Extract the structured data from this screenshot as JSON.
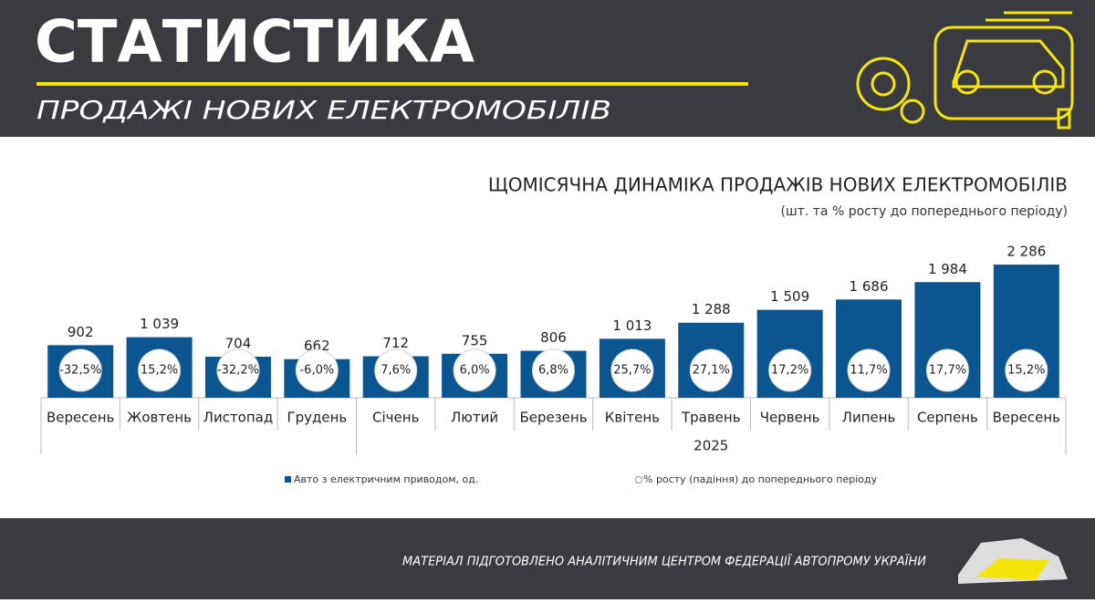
{
  "header": {
    "title": "СТАТИСТИКА",
    "subtitle": "ПРОДАЖІ НОВИХ ЕЛЕКТРОМОБІЛІВ"
  },
  "chart_data": {
    "type": "bar",
    "title": "ЩОМІСЯЧНА ДИНАМІКА ПРОДАЖІВ НОВИХ ЕЛЕКТРОМОБІЛІВ",
    "subtitle": "(шт. та % росту до попереднього періоду)",
    "categories": [
      "Вересень",
      "Жовтень",
      "Листопад",
      "Грудень",
      "Січень",
      "Лютий",
      "Березень",
      "Квітень",
      "Травень",
      "Червень",
      "Липень",
      "Серпень",
      "Вересень"
    ],
    "category_groups": [
      null,
      null,
      null,
      null,
      "2025",
      "2025",
      "2025",
      "2025",
      "2025",
      "2025",
      "2025",
      "2025",
      "2025"
    ],
    "series": [
      {
        "name": "Авто з електричним приводом, од.",
        "color": "#0b5591",
        "values": [
          902,
          1039,
          704,
          662,
          712,
          755,
          806,
          1013,
          1288,
          1509,
          1686,
          1984,
          2286
        ],
        "value_labels": [
          "902",
          "1 039",
          "704",
          "662",
          "712",
          "755",
          "806",
          "1 013",
          "1 288",
          "1 509",
          "1 686",
          "1 984",
          "2 286"
        ]
      },
      {
        "name": "% росту (падіння) до попереднього періоду",
        "color": "#ffffff",
        "values": [
          -32.5,
          15.2,
          -32.2,
          -6.0,
          7.6,
          6.0,
          6.8,
          25.7,
          27.1,
          17.2,
          11.7,
          17.7,
          15.2
        ],
        "value_labels": [
          "-32,5%",
          "15,2%",
          "-32,2%",
          "-6,0%",
          "7,6%",
          "6,0%",
          "6,8%",
          "25,7%",
          "27,1%",
          "17,2%",
          "11,7%",
          "17,7%",
          "15,2%"
        ]
      }
    ]
  },
  "footer": {
    "text": "МАТЕРІАЛ ПІДГОТОВЛЕНО АНАЛІТИЧНИМ ЦЕНТРОМ ФЕДЕРАЦІЇ АВТОПРОМУ УКРАЇНИ"
  }
}
